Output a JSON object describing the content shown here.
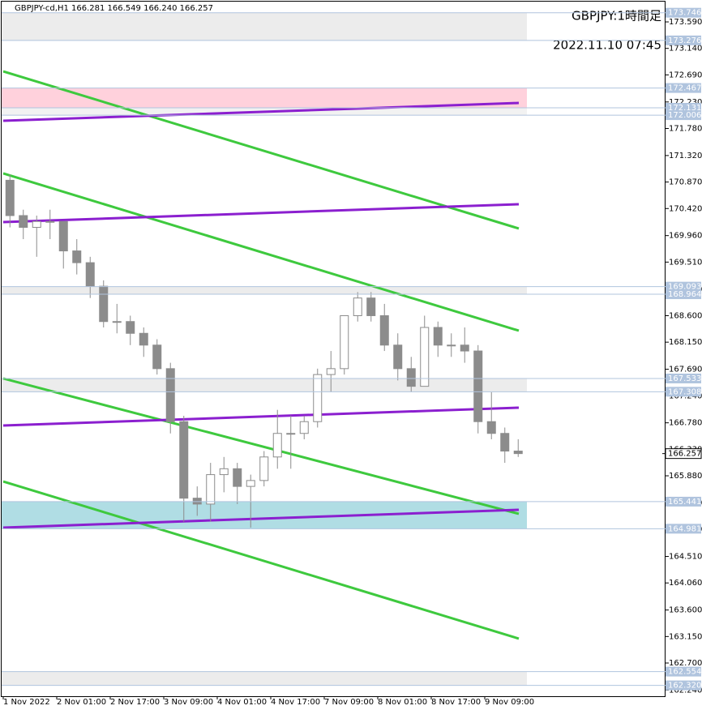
{
  "chart_data": {
    "type": "candlestick",
    "header": "GBPJPY-cd,H1  166.281 166.549 166.240 166.257",
    "symbol_label": "GBPJPY:1時間足",
    "timestamp": "2022.11.10 07:45",
    "ylim": [
      162.122,
      173.962
    ],
    "yticks": [
      {
        "value": 173.59,
        "label": "173.590"
      },
      {
        "value": 173.14,
        "label": "173.140"
      },
      {
        "value": 172.69,
        "label": "172.690"
      },
      {
        "value": 172.23,
        "label": "172.230"
      },
      {
        "value": 171.78,
        "label": "171.780"
      },
      {
        "value": 171.32,
        "label": "171.320"
      },
      {
        "value": 170.87,
        "label": "170.870"
      },
      {
        "value": 170.42,
        "label": "170.420"
      },
      {
        "value": 169.96,
        "label": "169.960"
      },
      {
        "value": 169.51,
        "label": "169.510"
      },
      {
        "value": 169.05,
        "label": "169.050"
      },
      {
        "value": 168.6,
        "label": "168.600"
      },
      {
        "value": 168.15,
        "label": "168.150"
      },
      {
        "value": 167.69,
        "label": "167.690"
      },
      {
        "value": 167.24,
        "label": "167.240"
      },
      {
        "value": 166.78,
        "label": "166.780"
      },
      {
        "value": 166.33,
        "label": "166.330"
      },
      {
        "value": 165.88,
        "label": "165.880"
      },
      {
        "value": 165.42,
        "label": "165.420"
      },
      {
        "value": 164.97,
        "label": "164.970"
      },
      {
        "value": 164.51,
        "label": "164.510"
      },
      {
        "value": 164.06,
        "label": "164.060"
      },
      {
        "value": 163.6,
        "label": "163.600"
      },
      {
        "value": 163.15,
        "label": "163.150"
      },
      {
        "value": 162.7,
        "label": "162.700"
      },
      {
        "value": 162.24,
        "label": "162.240"
      }
    ],
    "categories": [
      "1 Nov 2022",
      null,
      null,
      null,
      "2 Nov 01:00",
      null,
      null,
      null,
      "2 Nov 17:00",
      null,
      null,
      null,
      "3 Nov 09:00",
      null,
      null,
      null,
      "4 Nov 01:00",
      null,
      null,
      null,
      "4 Nov 17:00",
      null,
      null,
      null,
      "7 Nov 09:00",
      null,
      null,
      null,
      "8 Nov 01:00",
      null,
      null,
      null,
      "8 Nov 17:00",
      null,
      null,
      null,
      "9 Nov 09:00",
      null,
      null
    ],
    "open": [
      170.9,
      170.3,
      170.1,
      170.2,
      170.2,
      169.7,
      169.5,
      169.1,
      168.5,
      168.5,
      168.3,
      168.1,
      167.7,
      166.8,
      165.5,
      165.4,
      165.9,
      166.0,
      165.7,
      165.8,
      166.2,
      166.6,
      166.6,
      166.8,
      167.6,
      167.7,
      168.6,
      168.9,
      168.6,
      168.1,
      167.7,
      167.4,
      168.4,
      168.1,
      168.1,
      168.0,
      166.8,
      166.6,
      166.3
    ],
    "high": [
      171.0,
      170.4,
      170.3,
      170.4,
      170.2,
      169.9,
      169.6,
      169.2,
      168.8,
      168.6,
      168.4,
      168.2,
      167.8,
      166.9,
      165.7,
      166.1,
      166.2,
      166.1,
      165.9,
      166.3,
      167.0,
      166.9,
      166.9,
      167.7,
      168.0,
      168.6,
      169.0,
      169.0,
      168.8,
      168.3,
      167.9,
      168.6,
      168.5,
      168.3,
      168.4,
      168.1,
      167.3,
      166.7,
      166.5
    ],
    "low": [
      170.1,
      169.9,
      169.6,
      169.9,
      169.4,
      169.3,
      168.9,
      168.4,
      168.3,
      168.1,
      167.9,
      167.6,
      166.6,
      165.1,
      165.2,
      165.1,
      165.6,
      165.4,
      165.0,
      165.7,
      166.0,
      166.0,
      166.5,
      166.7,
      167.3,
      167.6,
      168.5,
      168.5,
      168.0,
      167.5,
      167.3,
      167.4,
      167.9,
      167.9,
      167.8,
      166.6,
      166.5,
      166.1,
      166.2
    ],
    "close": [
      170.3,
      170.1,
      170.2,
      170.2,
      169.7,
      169.5,
      169.1,
      168.5,
      168.5,
      168.3,
      168.1,
      167.7,
      166.8,
      165.5,
      165.4,
      165.9,
      166.0,
      165.7,
      165.8,
      166.2,
      166.6,
      166.6,
      166.8,
      167.6,
      167.7,
      168.6,
      168.9,
      168.6,
      168.1,
      167.7,
      167.4,
      168.4,
      168.1,
      168.1,
      168.0,
      166.8,
      166.6,
      166.3,
      166.257
    ],
    "candle_color": "#8c8c8c",
    "levels": [
      {
        "value": 173.746,
        "band_color": "#ececec"
      },
      {
        "value": 173.276
      },
      {
        "value": 172.467,
        "band_color": "#ffd1dc"
      },
      {
        "value": 172.131,
        "band_color": "#f2f2f2"
      },
      {
        "value": 172.006
      },
      {
        "value": 169.093,
        "band_color": "#ececec"
      },
      {
        "value": 168.964
      },
      {
        "value": 167.533,
        "band_color": "#ececec"
      },
      {
        "value": 167.308
      },
      {
        "value": 165.441,
        "band_color": "#b0dde4"
      },
      {
        "value": 164.981
      },
      {
        "value": 162.554,
        "band_color": "#ececec"
      },
      {
        "value": 162.32,
        "label": "162.320"
      }
    ],
    "level_color": "#b0c4de",
    "trendlines": [
      {
        "color": "#3ec93e",
        "start": 172.75,
        "end": 170.08
      },
      {
        "color": "#3ec93e",
        "start": 171.016,
        "end": 168.345
      },
      {
        "color": "#3ec93e",
        "start": 167.533,
        "end": 165.234
      },
      {
        "color": "#3ec93e",
        "start": 165.784,
        "end": 163.114
      },
      {
        "color": "#8b1fcf",
        "start": 171.91,
        "end": 172.213
      },
      {
        "color": "#8b1fcf",
        "start": 170.19,
        "end": 170.493
      },
      {
        "color": "#8b1fcf",
        "start": 166.734,
        "end": 167.037
      },
      {
        "color": "#8b1fcf",
        "start": 165.0,
        "end": 165.303
      }
    ]
  }
}
